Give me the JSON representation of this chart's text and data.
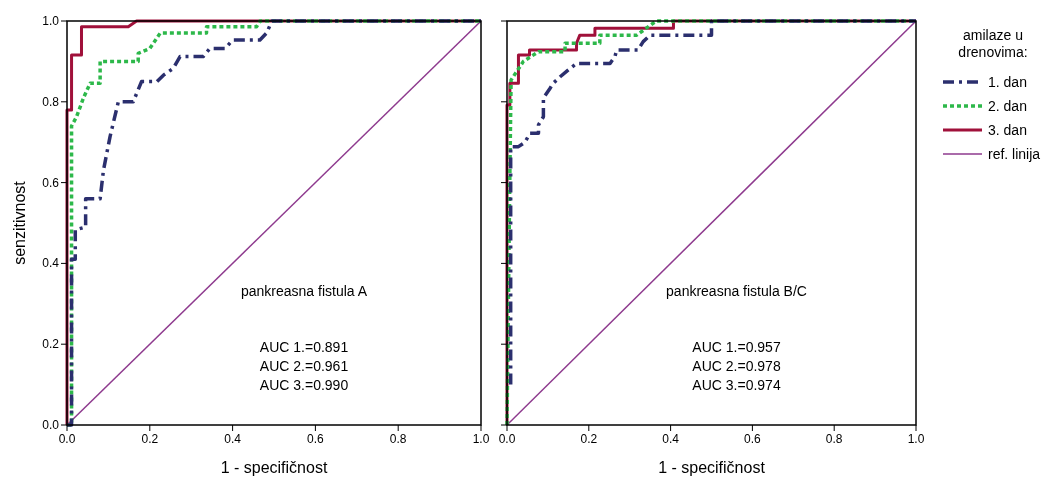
{
  "chart_data": [
    {
      "type": "line",
      "xlabel": "1 - specifičnost",
      "ylabel": "senzitivnost",
      "xlim": [
        0,
        1
      ],
      "ylim": [
        0,
        1
      ],
      "xticks": [
        {
          "value": 0,
          "label": "0.0"
        },
        {
          "value": 0.2,
          "label": "0.2"
        },
        {
          "value": 0.4,
          "label": "0.4"
        },
        {
          "value": 0.6,
          "label": "0.6"
        },
        {
          "value": 0.8,
          "label": "0.8"
        },
        {
          "value": 1,
          "label": "1.0"
        }
      ],
      "yticks": [
        {
          "value": 0,
          "label": "0.0"
        },
        {
          "value": 0.2,
          "label": "0.2"
        },
        {
          "value": 0.4,
          "label": "0.4"
        },
        {
          "value": 0.6,
          "label": "0.6"
        },
        {
          "value": 0.8,
          "label": "0.8"
        },
        {
          "value": 1,
          "label": "1.0"
        }
      ],
      "annotations": [
        "pankreasna fistula A",
        "AUC 1.=0.891",
        "AUC 2.=0.961",
        "AUC 3.=0.990"
      ],
      "series": [
        {
          "color": "#2b2f6e",
          "line_style": "dashed",
          "x": [
            0,
            0.011,
            0.011,
            0.02,
            0.02,
            0.045,
            0.045,
            0.08,
            0.088,
            0.104,
            0.124,
            0.16,
            0.172,
            0.18,
            0.217,
            0.233,
            0.257,
            0.273,
            0.329,
            0.345,
            0.382,
            0.4,
            0.466,
            0.482,
            0.495,
            1
          ],
          "values": [
            0,
            0,
            0.41,
            0.41,
            0.483,
            0.49,
            0.56,
            0.56,
            0.63,
            0.714,
            0.8,
            0.8,
            0.83,
            0.85,
            0.85,
            0.866,
            0.883,
            0.912,
            0.912,
            0.932,
            0.932,
            0.953,
            0.953,
            0.97,
            1,
            1
          ]
        },
        {
          "color": "#2db84a",
          "line_style": "dotted",
          "x": [
            0,
            0.011,
            0.011,
            0.023,
            0.04,
            0.056,
            0.08,
            0.08,
            0.172,
            0.172,
            0.2,
            0.225,
            0.337,
            0.337,
            0.458,
            0.466,
            1
          ],
          "values": [
            0,
            0,
            0.74,
            0.763,
            0.81,
            0.846,
            0.846,
            0.9,
            0.9,
            0.92,
            0.932,
            0.97,
            0.97,
            0.986,
            0.986,
            1,
            1
          ]
        },
        {
          "color": "#a0103a",
          "line_style": "solid",
          "x": [
            0,
            0,
            0.011,
            0.011,
            0.035,
            0.035,
            0.148,
            0.168,
            1
          ],
          "values": [
            0,
            0.78,
            0.78,
            0.916,
            0.916,
            0.986,
            0.986,
            1,
            1
          ]
        },
        {
          "color": "#8e3a8e",
          "line_style": "solid",
          "x": [
            0,
            1
          ],
          "values": [
            0,
            1
          ]
        }
      ]
    },
    {
      "type": "line",
      "xlabel": "1 - specifičnost",
      "xlim": [
        0,
        1
      ],
      "ylim": [
        0,
        1
      ],
      "tick_labels": "x",
      "legend": "right",
      "legend_title": "amilaze u drenovima:",
      "xticks": [
        {
          "value": 0,
          "label": "0.0"
        },
        {
          "value": 0.2,
          "label": "0.2"
        },
        {
          "value": 0.4,
          "label": "0.4"
        },
        {
          "value": 0.6,
          "label": "0.6"
        },
        {
          "value": 0.8,
          "label": "0.8"
        },
        {
          "value": 1,
          "label": "1.0"
        }
      ],
      "yticks": [
        {
          "value": 0,
          "label": null
        },
        {
          "value": 0.2,
          "label": null
        },
        {
          "value": 0.4,
          "label": null
        },
        {
          "value": 0.6,
          "label": null
        },
        {
          "value": 0.8,
          "label": null
        },
        {
          "value": 1,
          "label": null
        }
      ],
      "annotations": [
        "pankreasna fistula B/C",
        "AUC 1.=0.957",
        "AUC 2.=0.978",
        "AUC 3.=0.974"
      ],
      "series": [
        {
          "name": "1. dan",
          "color": "#2b2f6e",
          "line_style": "dashed",
          "x": [
            0.009,
            0.009,
            0.028,
            0.044,
            0.056,
            0.077,
            0.077,
            0.089,
            0.089,
            0.105,
            0.113,
            0.13,
            0.15,
            0.17,
            0.252,
            0.264,
            0.268,
            0.32,
            0.333,
            0.35,
            0.5,
            0.5,
            1
          ],
          "values": [
            0.1,
            0.689,
            0.689,
            0.7,
            0.722,
            0.722,
            0.743,
            0.763,
            0.809,
            0.833,
            0.846,
            0.862,
            0.879,
            0.895,
            0.895,
            0.912,
            0.928,
            0.928,
            0.949,
            0.965,
            0.965,
            1,
            1
          ]
        },
        {
          "name": "2. dan",
          "color": "#2db84a",
          "line_style": "dotted",
          "x": [
            0,
            0.007,
            0.01,
            0.04,
            0.077,
            0.142,
            0.142,
            0.227,
            0.227,
            0.317,
            0.358,
            0.366,
            1
          ],
          "values": [
            0,
            0.62,
            0.854,
            0.9,
            0.924,
            0.924,
            0.945,
            0.945,
            0.965,
            0.965,
            0.995,
            1,
            1
          ]
        },
        {
          "name": "3. dan",
          "color": "#a0103a",
          "line_style": "solid",
          "x": [
            0,
            0,
            0.007,
            0.007,
            0.028,
            0.028,
            0.055,
            0.055,
            0.17,
            0.17,
            0.178,
            0.215,
            0.215,
            0.407,
            0.407,
            1
          ],
          "values": [
            0,
            0.792,
            0.792,
            0.846,
            0.846,
            0.916,
            0.916,
            0.928,
            0.928,
            0.945,
            0.965,
            0.965,
            0.982,
            0.982,
            1,
            1
          ]
        },
        {
          "name": "ref. linija",
          "color": "#8e3a8e",
          "line_style": "solid",
          "x": [
            0,
            1
          ],
          "values": [
            0,
            1
          ]
        }
      ]
    }
  ]
}
